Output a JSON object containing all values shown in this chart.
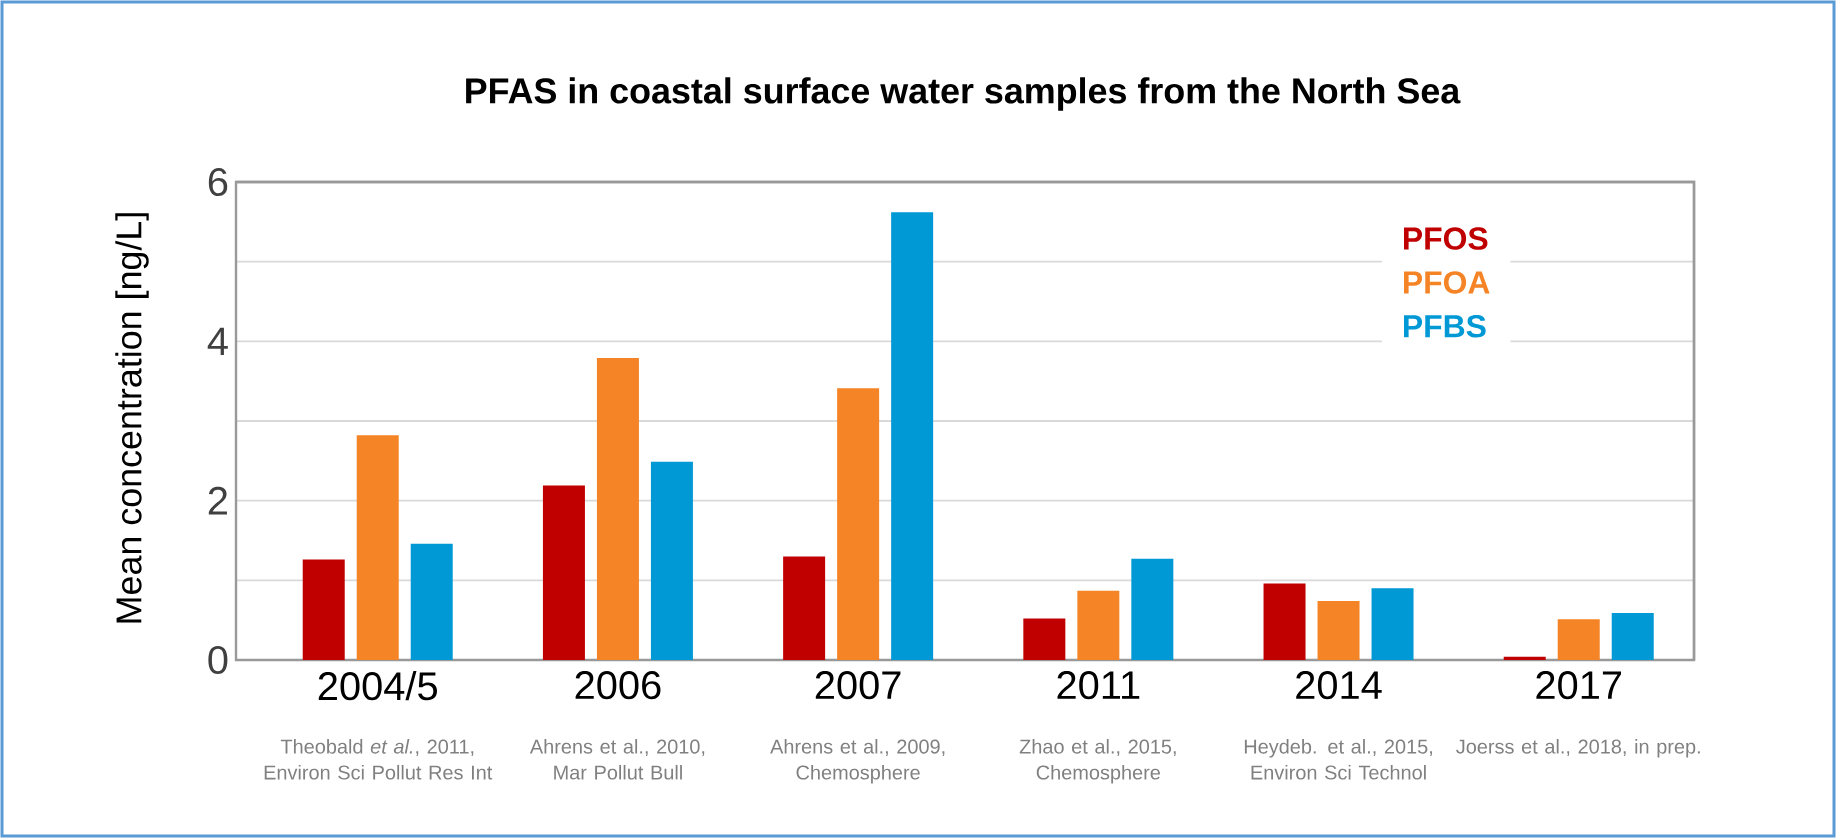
{
  "chart_data": {
    "type": "bar",
    "title": "PFAS in coastal surface water samples from the North Sea",
    "ylabel": "Mean concentration [ng/L]",
    "categories": [
      "2004/5",
      "2006",
      "2007",
      "2011",
      "2014",
      "2017"
    ],
    "series": [
      {
        "name": "PFOS",
        "color": "#c00000",
        "values": [
          1.26,
          2.19,
          1.3,
          0.52,
          0.96,
          0.04
        ]
      },
      {
        "name": "PFOA",
        "color": "#f58426",
        "values": [
          2.82,
          3.79,
          3.41,
          0.87,
          0.74,
          0.51
        ]
      },
      {
        "name": "PFBS",
        "color": "#0099d5",
        "values": [
          1.46,
          2.49,
          5.62,
          1.27,
          0.9,
          0.59
        ]
      }
    ],
    "ylim": [
      0,
      6
    ],
    "yticks": [
      0,
      {
        "value": 1,
        "label": null
      },
      2,
      {
        "value": 3,
        "label": null
      },
      4,
      {
        "value": 5,
        "label": null
      },
      6
    ],
    "grid": "y",
    "legend": "top right",
    "annotations": [
      "Theobald *et al.*, 2011, Environ Sci Pollut Res Int",
      "Ahrens et al., 2010, Mar Pollut Bull",
      "Ahrens et al., 2009, Chemosphere",
      "Zhao et al., 2015, Chemosphere",
      "Heydeb. et al., 2015, Environ Sci Technol",
      "Joerss et al., 2018, in prep."
    ]
  }
}
